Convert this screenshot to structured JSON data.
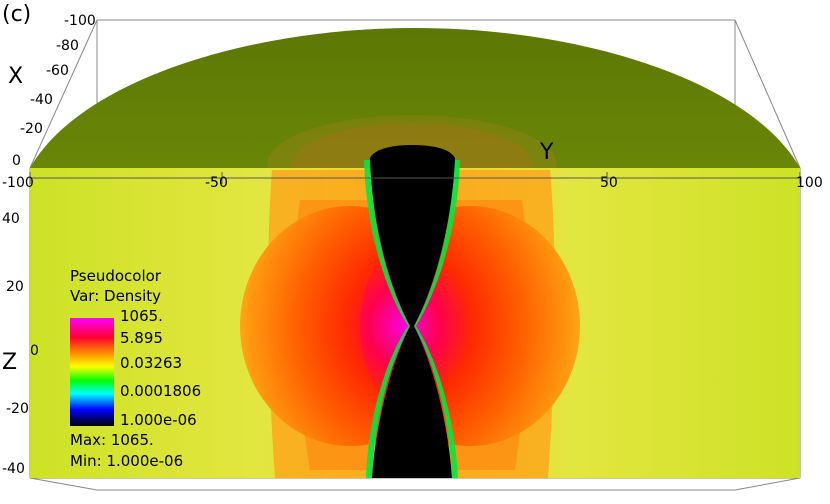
{
  "panel_label": "(c)",
  "axes": {
    "x_label": "X",
    "y_label": "Y",
    "z_label": "Z",
    "x_ticks": [
      "-100",
      "-80",
      "-60",
      "-40",
      "-20",
      "0"
    ],
    "y_ticks": [
      "-100",
      "-50",
      "50",
      "100"
    ],
    "z_ticks": [
      "40",
      "20",
      "0",
      "-20",
      "-40"
    ]
  },
  "legend": {
    "title": "Pseudocolor",
    "variable": "Var: Density",
    "values": [
      "1065.",
      "5.895",
      "0.03263",
      "0.0001806",
      "1.000e-06"
    ],
    "colors": [
      "#ff00ff",
      "#ff0000",
      "#ffff00",
      "#00ff00",
      "#00ffff",
      "#0000ff",
      "#000000"
    ],
    "max": "Max:  1065.",
    "min": "Min:  1.000e-06"
  },
  "plot_colors": {
    "top_surface": "#5e7a05",
    "background_field": "#d8e630",
    "torus": "#ff5a00",
    "core": "#ff00cc",
    "jet": "#000000"
  }
}
